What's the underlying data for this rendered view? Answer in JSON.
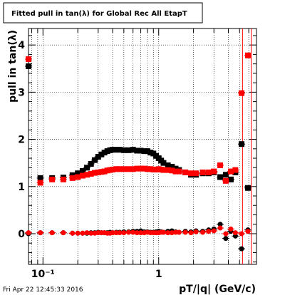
{
  "chart_data": {
    "type": "scatter",
    "title": "Fitted pull in tan(λ) for Global Rec All EtapT",
    "xlabel": "pT/|q| (GeV/c)",
    "ylabel": "pull in tan(λ)",
    "x_scale": "log",
    "xlim": [
      0.075,
      7.0
    ],
    "ylim": [
      -0.65,
      4.35
    ],
    "x_ticks": [
      {
        "value": 0.1,
        "label": "10⁻¹"
      },
      {
        "value": 1,
        "label": "1"
      }
    ],
    "y_ticks": [
      0,
      1,
      2,
      3,
      4
    ],
    "grid": true,
    "vertical_lines": [
      5.3,
      6.3
    ],
    "series": [
      {
        "color": "#000000",
        "role": "sigma",
        "x": [
          0.075,
          0.095,
          0.12,
          0.15,
          0.18,
          0.2,
          0.22,
          0.24,
          0.26,
          0.28,
          0.3,
          0.32,
          0.34,
          0.36,
          0.38,
          0.4,
          0.43,
          0.46,
          0.5,
          0.55,
          0.6,
          0.65,
          0.7,
          0.75,
          0.8,
          0.85,
          0.9,
          0.95,
          1.0,
          1.05,
          1.1,
          1.2,
          1.3,
          1.4,
          1.5,
          1.7,
          1.9,
          2.1,
          2.4,
          2.7,
          3.0,
          3.4,
          3.8,
          4.2,
          4.6,
          5.2,
          5.9
        ],
        "values": [
          3.55,
          1.18,
          1.18,
          1.19,
          1.24,
          1.28,
          1.33,
          1.4,
          1.48,
          1.56,
          1.63,
          1.68,
          1.72,
          1.75,
          1.77,
          1.78,
          1.78,
          1.78,
          1.77,
          1.77,
          1.78,
          1.76,
          1.76,
          1.75,
          1.75,
          1.72,
          1.7,
          1.65,
          1.6,
          1.55,
          1.5,
          1.45,
          1.42,
          1.38,
          1.35,
          1.3,
          1.25,
          1.25,
          1.28,
          1.28,
          1.3,
          1.2,
          1.25,
          1.15,
          1.3,
          1.9,
          0.97
        ]
      },
      {
        "color": "#ff0000",
        "role": "sigma",
        "x": [
          0.075,
          0.095,
          0.12,
          0.15,
          0.18,
          0.2,
          0.22,
          0.24,
          0.26,
          0.28,
          0.3,
          0.32,
          0.34,
          0.36,
          0.38,
          0.4,
          0.43,
          0.46,
          0.5,
          0.55,
          0.6,
          0.65,
          0.7,
          0.75,
          0.8,
          0.85,
          0.9,
          0.95,
          1.0,
          1.05,
          1.1,
          1.2,
          1.3,
          1.4,
          1.5,
          1.7,
          1.9,
          2.1,
          2.4,
          2.7,
          3.0,
          3.4,
          3.8,
          4.2,
          4.6,
          5.2,
          5.9
        ],
        "values": [
          3.7,
          1.08,
          1.15,
          1.15,
          1.18,
          1.2,
          1.23,
          1.25,
          1.27,
          1.29,
          1.3,
          1.31,
          1.32,
          1.34,
          1.35,
          1.36,
          1.37,
          1.37,
          1.37,
          1.37,
          1.37,
          1.38,
          1.38,
          1.38,
          1.37,
          1.37,
          1.36,
          1.36,
          1.37,
          1.36,
          1.35,
          1.35,
          1.34,
          1.32,
          1.32,
          1.3,
          1.28,
          1.28,
          1.3,
          1.3,
          1.32,
          1.45,
          1.12,
          1.32,
          1.35,
          2.98,
          3.78
        ]
      },
      {
        "color": "#000000",
        "role": "mean",
        "x": [
          0.075,
          0.095,
          0.12,
          0.15,
          0.18,
          0.2,
          0.22,
          0.24,
          0.26,
          0.28,
          0.3,
          0.32,
          0.34,
          0.36,
          0.38,
          0.4,
          0.43,
          0.46,
          0.5,
          0.55,
          0.6,
          0.65,
          0.7,
          0.75,
          0.8,
          0.85,
          0.9,
          0.95,
          1.0,
          1.05,
          1.1,
          1.2,
          1.3,
          1.4,
          1.5,
          1.7,
          1.9,
          2.1,
          2.4,
          2.7,
          3.0,
          3.4,
          3.8,
          4.2,
          4.6,
          5.2,
          5.9
        ],
        "values": [
          0.0,
          0.02,
          0.02,
          0.02,
          0.01,
          0.01,
          0.01,
          0.01,
          0.02,
          0.02,
          0.03,
          0.02,
          0.02,
          0.02,
          0.03,
          0.02,
          0.03,
          0.03,
          0.04,
          0.04,
          0.05,
          0.05,
          0.06,
          0.04,
          0.04,
          0.03,
          0.03,
          0.04,
          0.05,
          0.04,
          0.03,
          0.05,
          0.06,
          0.04,
          0.03,
          0.05,
          0.04,
          0.06,
          0.05,
          0.08,
          0.1,
          0.2,
          -0.1,
          0.05,
          -0.05,
          -0.32,
          0.08
        ]
      },
      {
        "color": "#ff0000",
        "role": "mean",
        "x": [
          0.075,
          0.095,
          0.12,
          0.15,
          0.18,
          0.2,
          0.22,
          0.24,
          0.26,
          0.28,
          0.3,
          0.32,
          0.34,
          0.36,
          0.38,
          0.4,
          0.43,
          0.46,
          0.5,
          0.55,
          0.6,
          0.65,
          0.7,
          0.75,
          0.8,
          0.85,
          0.9,
          0.95,
          1.0,
          1.05,
          1.1,
          1.2,
          1.3,
          1.4,
          1.5,
          1.7,
          1.9,
          2.1,
          2.4,
          2.7,
          3.0,
          3.4,
          3.8,
          4.2,
          4.6,
          5.2,
          5.9
        ],
        "values": [
          0.02,
          0.02,
          0.02,
          0.02,
          0.01,
          0.01,
          0.01,
          0.02,
          0.01,
          0.01,
          0.02,
          0.02,
          0.02,
          0.01,
          0.01,
          0.02,
          0.02,
          0.02,
          0.02,
          0.03,
          0.03,
          0.02,
          0.02,
          0.02,
          0.03,
          0.02,
          0.02,
          0.02,
          0.02,
          0.03,
          0.03,
          0.02,
          0.02,
          0.03,
          0.03,
          0.03,
          0.02,
          0.04,
          0.03,
          0.05,
          0.06,
          0.12,
          0.0,
          0.1,
          0.02,
          0.0,
          0.05
        ]
      }
    ]
  },
  "footer": {
    "timestamp": "Fri Apr 22 12:45:33 2016"
  }
}
